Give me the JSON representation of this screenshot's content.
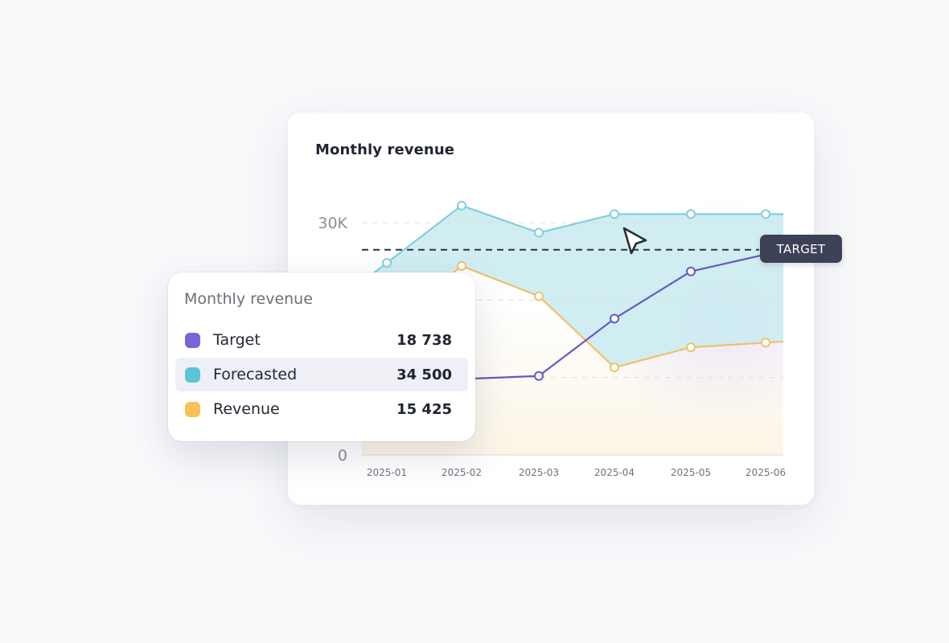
{
  "chart_card": {
    "title": "Monthly revenue"
  },
  "target_badge": {
    "label": "TARGET"
  },
  "tooltip": {
    "title": "Monthly revenue",
    "rows": [
      {
        "label": "Target",
        "value": "18 738",
        "color": "#7466d6"
      },
      {
        "label": "Forecasted",
        "value": "34 500",
        "color": "#5cc4d8"
      },
      {
        "label": "Revenue",
        "value": "15 425",
        "color": "#f6c157"
      }
    ]
  },
  "chart_data": {
    "type": "line",
    "title": "Monthly revenue",
    "x": [
      "2025-01",
      "2025-02",
      "2025-03",
      "2025-04",
      "2025-05",
      "2025-06"
    ],
    "y_tick_labels": [
      "30K",
      "0"
    ],
    "ylim": [
      0,
      30000
    ],
    "grid": "horizontal dashed",
    "target_line": {
      "value": 26500,
      "label": "TARGET"
    },
    "series": [
      {
        "name": "Target",
        "color": "#6658c4",
        "x": [
          "2025-01",
          "2025-02",
          "2025-03",
          "2025-04",
          "2025-05",
          "2025-06"
        ],
        "values": [
          6800,
          9800,
          10200,
          17600,
          23700,
          25900
        ]
      },
      {
        "name": "Forecasted",
        "color": "#7fd0dc",
        "fill": "#cdecf1",
        "x": [
          "2025-01",
          "2025-02",
          "2025-03",
          "2025-04",
          "2025-05",
          "2025-06"
        ],
        "values": [
          24800,
          32200,
          28700,
          31100,
          31100,
          31100
        ]
      },
      {
        "name": "Revenue",
        "color": "#f0c06a",
        "x": [
          "2025-01",
          "2025-02",
          "2025-03",
          "2025-04",
          "2025-05",
          "2025-06"
        ],
        "values": [
          16500,
          24400,
          20500,
          11300,
          13900,
          14500
        ]
      }
    ]
  }
}
